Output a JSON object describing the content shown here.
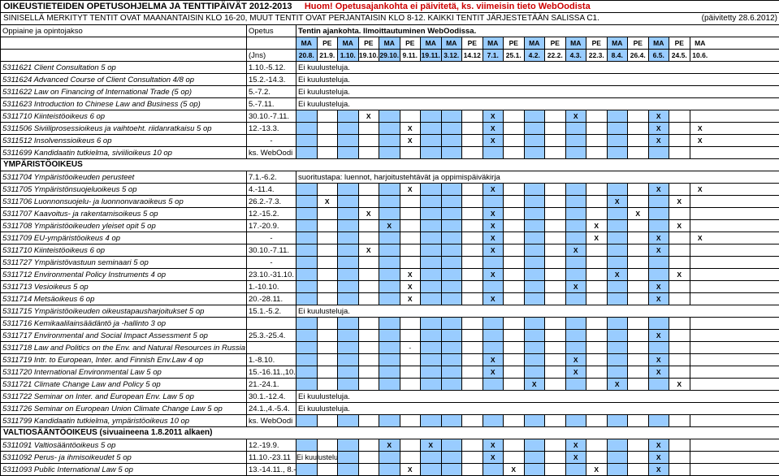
{
  "colors": {
    "blue_highlight": "#99ccff",
    "red_text": "#c00000",
    "border": "#000000",
    "bg": "#ffffff"
  },
  "title": {
    "main": "OIKEUSTIETEIDEN OPETUSOHJELMA JA TENTTIPÄIVÄT 2012-2013",
    "warn": "Huom! Opetusajankohta ei päivitetä, ks. viimeisin tieto WebOodista"
  },
  "subtitle": {
    "text": "SINISELLÄ MERKITYT TENTIT OVAT MAANANTAISIN KLO 16-20, MUUT TENTIT OVAT PERJANTAISIN KLO 8-12. KAIKKI TENTIT JÄRJESTETÄÄN SALISSA C1.",
    "date": "(päivitetty 28.6.2012)"
  },
  "headers": {
    "col1": "Oppiaine ja opintojakso",
    "col2": "Opetus",
    "col3": "Tentin ajankohta. Ilmoittautuminen WebOodissa."
  },
  "jns": "(Jns)",
  "type_row": [
    "MA",
    "PE",
    "MA",
    "PE",
    "MA",
    "PE",
    "MA",
    "MA",
    "PE",
    "MA",
    "PE",
    "MA",
    "PE",
    "MA",
    "PE",
    "MA",
    "PE",
    "MA",
    "PE",
    "MA"
  ],
  "date_row": [
    "20.8.",
    "21.9.",
    "1.10.",
    "19.10.",
    "29.10.",
    "9.11.",
    "19.11.",
    "3.12.",
    "14.12",
    "7.1.",
    "25.1.",
    "4.2.",
    "22.2.",
    "4.3.",
    "22.3.",
    "8.4.",
    "26.4.",
    "6.5.",
    "24.5.",
    "10.6."
  ],
  "blue_dates": [
    0,
    2,
    4,
    6,
    7,
    9,
    11,
    13,
    15,
    17
  ],
  "sections": {
    "ymp": "YMPÄRISTÖOIKEUS",
    "valtio": "VALTIOSÄÄNTÖOIKEUS  (sivuaineena 1.8.2011 alkaen)"
  },
  "notes": {
    "ei": "Ei kuulusteluja.",
    "weboodi": "ks. WebOodi",
    "suoritus": "suoritustapa: luennot, harjoitustehtävät ja oppimispäiväkirja"
  },
  "rows": [
    {
      "name": "5311621 Client Consultation 5 op",
      "op": "1.10.-5.12.",
      "note": "ei"
    },
    {
      "name": "5311624 Advanced Course of Client Consultation 4/8 op",
      "op": "15.2.-14.3.",
      "note": "ei"
    },
    {
      "name": "5311622 Law on Financing of International Trade (5 op)",
      "op": "5.-7.2.",
      "note": "ei"
    },
    {
      "name": "5311623 Introduction to Chinese Law and Business (5 op)",
      "op": "5.-7.11.",
      "note": "ei"
    },
    {
      "name": "5311710 Kiinteistöoikeus 6 op",
      "op": "30.10.-7.11.",
      "x": [
        3,
        9,
        13,
        17
      ]
    },
    {
      "name": "5311506 Siviiliprosessioikeus ja vaihtoeht. riidanratkaisu 5 op",
      "op": "12.-13.3.",
      "x": [
        5,
        9,
        17,
        19
      ]
    },
    {
      "name": "5311512 Insolvenssioikeus 6 op",
      "op": "-",
      "x": [
        5,
        9,
        17,
        19
      ]
    },
    {
      "name": "5311699 Kandidaatin tutkielma, siviilioikeus 10 op",
      "op": "ks. WebOodi",
      "note": null
    },
    {
      "section": "ymp"
    },
    {
      "name": "5311704 Ympäristöoikeuden perusteet",
      "op": "7.1.-6.2.",
      "note": "suoritus"
    },
    {
      "name": "5311705 Ympäristönsuojeluoikeus 5 op",
      "op": "4.-11.4.",
      "x": [
        5,
        9,
        17,
        19
      ]
    },
    {
      "name": "5311706 Luonnonsuojelu- ja luonnonvaraoikeus 5 op",
      "op": "26.2.-7.3.",
      "x": [
        1,
        15,
        18
      ]
    },
    {
      "name": "5311707 Kaavoitus- ja rakentamisoikeus 5 op",
      "op": "12.-15.2.",
      "x": [
        3,
        9,
        16
      ]
    },
    {
      "name": "5311708 Ympäristöoikeuden yleiset opit 5 op",
      "op": "17.-20.9.",
      "x": [
        4,
        9,
        14,
        18
      ]
    },
    {
      "name": "5311709 EU-ympäristöoikeus 4 op",
      "op": "-",
      "x": [
        9,
        14,
        17,
        19
      ]
    },
    {
      "name": "5311710 Kiinteistöoikeus 6 op",
      "op": "30.10.-7.11.",
      "x": [
        3,
        9,
        13,
        17
      ]
    },
    {
      "name": "5311727 Ympäristövastuun seminaari 5 op",
      "op": "-"
    },
    {
      "name": "5311712 Environmental Policy Instruments 4 op",
      "op": "23.10.-31.10.",
      "x": [
        5,
        9,
        15,
        18
      ]
    },
    {
      "name": "5311713 Vesioikeus 5 op",
      "op": "1.-10.10.",
      "x": [
        5,
        13,
        17
      ]
    },
    {
      "name": "5311714 Metsäoikeus 6 op",
      "op": "20.-28.11.",
      "x": [
        5,
        9,
        17
      ]
    },
    {
      "name": "5311715 Ympäristöoikeuden oikeustapausharjoitukset 5 op",
      "op": "15.1.-5.2.",
      "note": "ei"
    },
    {
      "name": "5311716 Kemikaalilainsäädäntö ja -hallinto 3 op",
      "op": ""
    },
    {
      "name": "5311717 Environmental and Social Impact Assessment 5 op",
      "op": "25.3.-25.4.",
      "x": [
        17
      ]
    },
    {
      "name": "5311718 Law and Politics on the Env. and Natural Resources in Russia 6 op",
      "op": "",
      "dash_at": 5
    },
    {
      "name": "5311719 Intr. to European, Inter. and Finnish Env.Law 4 op",
      "op": "1.-8.10.",
      "x": [
        9,
        13,
        17
      ]
    },
    {
      "name": "5311720 International Environmental Law 5 op",
      "op": "15.-16.11.,10.-11.11.",
      "x": [
        9,
        13,
        17
      ]
    },
    {
      "name": "5311721 Climate Change Law and Policy 5 op",
      "op": "21.-24.1.",
      "x": [
        11,
        15,
        18
      ]
    },
    {
      "name": "5311722 Seminar on Inter. and European Env. Law 5 op",
      "op": "30.1.-12.4.",
      "note": "ei"
    },
    {
      "name": "5311726 Seminar on European Union Climate Change Law 5 op",
      "op": "24.1.,4.-5.4.",
      "note": "ei"
    },
    {
      "name": "5311799 Kandidaatin tutkielma, ympäristöoikeus 10 op",
      "op": "ks. WebOodi"
    },
    {
      "section": "valtio"
    },
    {
      "name": "5311091 Valtiosääntöoikeus 5 op",
      "op": "12.-19.9.",
      "x": [
        4,
        6,
        9,
        13,
        17
      ]
    },
    {
      "name": "5311092 Perus- ja ihmisoikeudet 5 op",
      "op": "11.10.-23.11",
      "note": "ei",
      "x": [
        9,
        13,
        17
      ]
    },
    {
      "name": "5311093 Public International Law 5 op",
      "op": "13.-14.11., 8.-9.1.",
      "x": [
        5,
        10,
        14,
        17
      ]
    }
  ]
}
